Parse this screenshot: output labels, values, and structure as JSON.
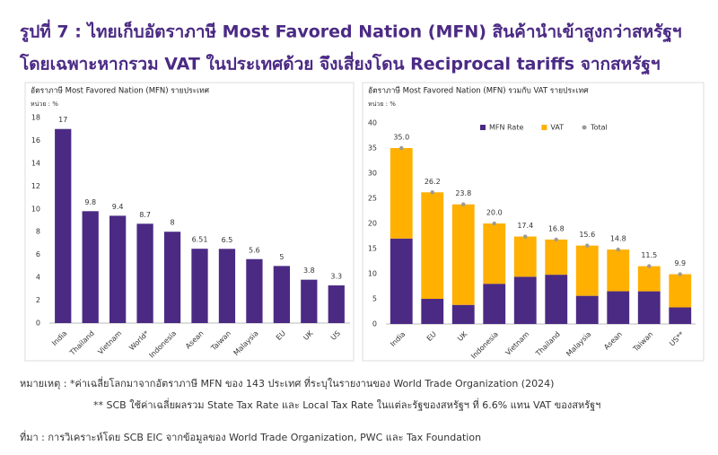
{
  "header": {
    "title_line1": "รูปที่ 7 : ไทยเก็บอัตราภาษี Most Favored Nation (MFN) สินค้านำเข้าสูงกว่าสหรัฐฯ",
    "title_line2": "โดยเฉพาะหากรวม VAT ในประเทศด้วย จึงเสี่ยงโดน Reciprocal tariffs จากสหรัฐฯ"
  },
  "chart_data": [
    {
      "type": "bar",
      "title": "อัตราภาษี Most Favored Nation (MFN) รายประเทศ",
      "unit": "หน่วย : %",
      "categories": [
        "India",
        "Thailand",
        "Vietnam",
        "World*",
        "Indonesia",
        "Asean",
        "Taiwan",
        "Malaysia",
        "EU",
        "UK",
        "US"
      ],
      "values": [
        17,
        9.8,
        9.4,
        8.7,
        8,
        6.51,
        6.5,
        5.6,
        5,
        3.8,
        3.3
      ],
      "color": "#4b2a84",
      "ylim": [
        0,
        18
      ],
      "yticks": [
        0,
        2,
        4,
        6,
        8,
        10,
        12,
        14,
        16,
        18
      ],
      "grid": false
    },
    {
      "type": "bar",
      "title": "อัตราภาษี Most Favored Nation (MFN) รวมกับ VAT รายประเทศ",
      "unit": "หน่วย : %",
      "categories": [
        "India",
        "EU",
        "UK",
        "Indonesia",
        "Vietnam",
        "Thailand",
        "Malaysia",
        "Asean",
        "Taiwan",
        "US**"
      ],
      "stacked": true,
      "series": [
        {
          "name": "MFN Rate",
          "color": "#4b2a84",
          "values": [
            17,
            5,
            3.8,
            8,
            9.4,
            9.8,
            5.6,
            6.51,
            6.5,
            3.3
          ]
        },
        {
          "name": "VAT",
          "color": "#ffb000",
          "values": [
            18,
            21.2,
            20,
            12,
            8,
            7,
            10,
            8.3,
            5,
            6.6
          ]
        },
        {
          "name": "Total",
          "color": "#9a9a9a",
          "style": "dot",
          "values": [
            35,
            26.2,
            23.8,
            20,
            17.4,
            16.8,
            15.6,
            14.8,
            11.5,
            9.9
          ],
          "value_labels": [
            "35.0",
            "26.2",
            "23.8",
            "20.0",
            "17.4",
            "16.8",
            "15.6",
            "14.8",
            "11.5",
            "9.9"
          ]
        }
      ],
      "legend": "top",
      "ylim": [
        0,
        40
      ],
      "yticks": [
        0,
        5,
        10,
        15,
        20,
        25,
        30,
        35,
        40
      ],
      "grid": false
    }
  ],
  "notes": [
    "หมายเหตุ : *ค่าเฉลี่ยโลกมาจากอัตราภาษี MFN ของ 143 ประเทศ ที่ระบุในรายงานของ World Trade Organization (2024)",
    "** SCB ใช้ค่าเฉลี่ยผลรวม State Tax Rate และ Local Tax Rate ในแต่ละรัฐของสหรัฐฯ ที่ 6.6% แทน VAT ของสหรัฐฯ"
  ],
  "source": "ที่มา : การวิเคราะห์โดย SCB EIC จากข้อมูลของ World Trade Organization, PWC และ Tax Foundation"
}
